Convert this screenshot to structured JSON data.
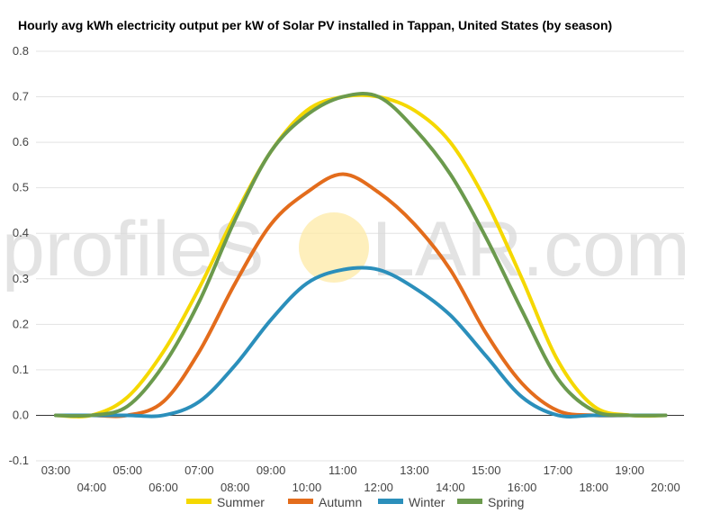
{
  "chart_data": {
    "type": "line",
    "title": "Hourly avg kWh electricity output per kW of Solar PV installed in Tappan, United States (by season)",
    "xlabel": "",
    "ylabel": "",
    "ylim": [
      -0.1,
      0.8
    ],
    "yticks": [
      "0.8",
      "0.7",
      "0.6",
      "0.5",
      "0.4",
      "0.3",
      "0.2",
      "0.1",
      "0.0",
      "-0.1"
    ],
    "categories": [
      "03:00",
      "04:00",
      "05:00",
      "06:00",
      "07:00",
      "08:00",
      "09:00",
      "10:00",
      "11:00",
      "12:00",
      "13:00",
      "14:00",
      "15:00",
      "16:00",
      "17:00",
      "18:00",
      "19:00",
      "20:00"
    ],
    "grid": true,
    "legend_position": "bottom",
    "series": [
      {
        "name": "Summer",
        "color": "#f5d800",
        "values": [
          0.0,
          0.0,
          0.04,
          0.14,
          0.28,
          0.44,
          0.58,
          0.67,
          0.7,
          0.7,
          0.67,
          0.6,
          0.47,
          0.3,
          0.12,
          0.02,
          0.0,
          0.0
        ]
      },
      {
        "name": "Autumn",
        "color": "#e36c1c",
        "values": [
          0.0,
          0.0,
          0.0,
          0.03,
          0.14,
          0.29,
          0.42,
          0.49,
          0.53,
          0.49,
          0.42,
          0.32,
          0.18,
          0.07,
          0.01,
          0.0,
          0.0,
          0.0
        ]
      },
      {
        "name": "Winter",
        "color": "#2b8fbb",
        "values": [
          0.0,
          0.0,
          0.0,
          0.0,
          0.03,
          0.11,
          0.21,
          0.29,
          0.32,
          0.32,
          0.28,
          0.22,
          0.13,
          0.04,
          0.0,
          0.0,
          0.0,
          0.0
        ]
      },
      {
        "name": "Spring",
        "color": "#6b9a4d",
        "values": [
          0.0,
          0.0,
          0.02,
          0.11,
          0.25,
          0.43,
          0.58,
          0.66,
          0.7,
          0.7,
          0.63,
          0.53,
          0.39,
          0.23,
          0.08,
          0.01,
          0.0,
          0.0
        ]
      }
    ]
  },
  "watermark": {
    "text_left": "profileS",
    "text_right": "LAR.com",
    "sun_color": "#fde9a6"
  }
}
